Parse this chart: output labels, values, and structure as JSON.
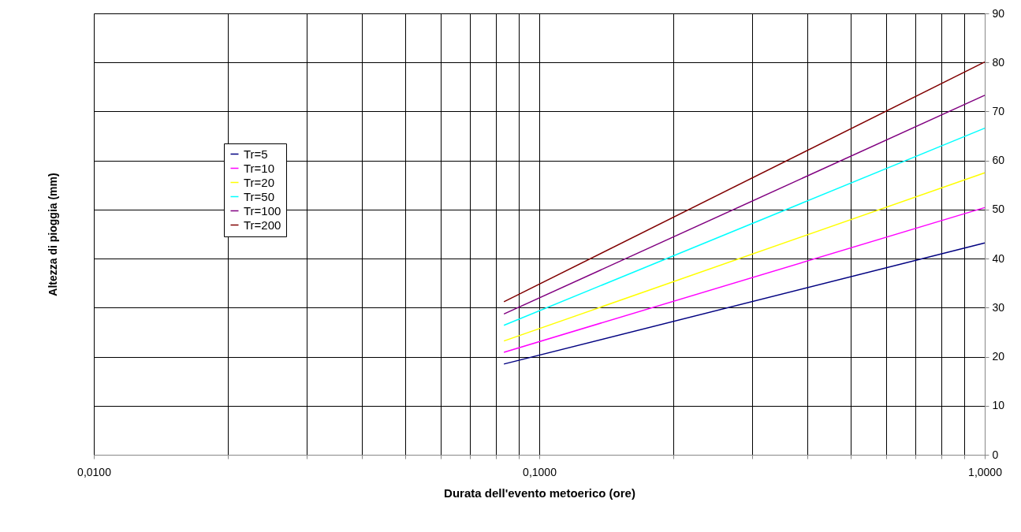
{
  "chart_data": {
    "type": "line",
    "xlabel": "Durata dell'evento metoerico (ore)",
    "ylabel": "Altezza di pioggia (mm)",
    "x": [
      0.0833,
      1.0
    ],
    "log": "x",
    "xlim": [
      0.01,
      1
    ],
    "ylim": [
      0,
      90
    ],
    "xticks": [
      {
        "value": 0.01,
        "label": "0,0100"
      },
      {
        "value": 0.02,
        "label": null
      },
      {
        "value": 0.03,
        "label": null
      },
      {
        "value": 0.04,
        "label": null
      },
      {
        "value": 0.05,
        "label": null
      },
      {
        "value": 0.06,
        "label": null
      },
      {
        "value": 0.07,
        "label": null
      },
      {
        "value": 0.08,
        "label": null
      },
      {
        "value": 0.09,
        "label": null
      },
      {
        "value": 0.1,
        "label": "0,1000"
      },
      {
        "value": 0.2,
        "label": null
      },
      {
        "value": 0.3,
        "label": null
      },
      {
        "value": 0.4,
        "label": null
      },
      {
        "value": 0.5,
        "label": null
      },
      {
        "value": 0.6,
        "label": null
      },
      {
        "value": 0.7,
        "label": null
      },
      {
        "value": 0.8,
        "label": null
      },
      {
        "value": 0.9,
        "label": null
      },
      {
        "value": 1,
        "label": "1,0000"
      }
    ],
    "yticks": [
      0,
      10,
      20,
      30,
      40,
      50,
      60,
      70,
      80,
      90
    ],
    "grid": true,
    "legend": "top left",
    "marker": "none",
    "line_style": "solid",
    "series": [
      {
        "name": "Tr=5",
        "color": "#000080",
        "values": [
          18.5,
          43.2
        ]
      },
      {
        "name": "Tr=10",
        "color": "#ff00ff",
        "values": [
          20.9,
          50.4
        ]
      },
      {
        "name": "Tr=20",
        "color": "#ffff00",
        "values": [
          23.2,
          57.5
        ]
      },
      {
        "name": "Tr=50",
        "color": "#00ffff",
        "values": [
          26.4,
          66.6
        ]
      },
      {
        "name": "Tr=100",
        "color": "#800080",
        "values": [
          28.7,
          73.3
        ]
      },
      {
        "name": "Tr=200",
        "color": "#800000",
        "values": [
          31.2,
          80.1
        ]
      }
    ]
  }
}
